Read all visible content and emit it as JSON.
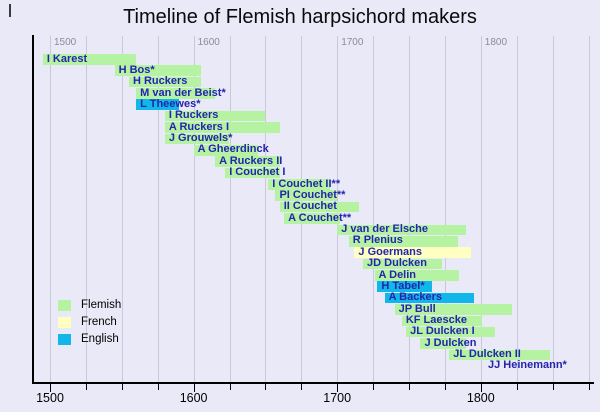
{
  "title": "Timeline of Flemish harpsichord makers",
  "colors": {
    "background": "#e9e9f7",
    "gridline": "#c9c9da",
    "axis": "#000000",
    "bar_label": "#2424ad",
    "top_tick_label": "#8b8b9b",
    "flemish": "#b5f3a3",
    "french": "#ffffc2",
    "english": "#12b7e9"
  },
  "legend": [
    {
      "label": "Flemish",
      "group": "flemish"
    },
    {
      "label": "French",
      "group": "french"
    },
    {
      "label": "English",
      "group": "english"
    }
  ],
  "chart_data": {
    "type": "bar",
    "subtype": "gantt-timeline",
    "title": "Timeline of Flemish harpsichord makers",
    "xlabel": "Year",
    "ylabel": "",
    "xlim": [
      1488,
      1880
    ],
    "grid": true,
    "legend_position": "bottom-left",
    "axis": {
      "major_ticks": [
        1500,
        1600,
        1700,
        1800
      ],
      "minor_step": 25,
      "min": 1500,
      "max": 1875
    },
    "series": [
      {
        "name": "I Karest",
        "start": 1495,
        "end": 1560,
        "group": "flemish"
      },
      {
        "name": "H Bos*",
        "start": 1545,
        "end": 1605,
        "group": "flemish"
      },
      {
        "name": "H Ruckers",
        "start": 1555,
        "end": 1605,
        "group": "flemish"
      },
      {
        "name": "M van der Beist*",
        "start": 1560,
        "end": 1615,
        "group": "flemish"
      },
      {
        "name": "L Theewes*",
        "start": 1560,
        "end": 1590,
        "group": "english"
      },
      {
        "name": "I Ruckers",
        "start": 1580,
        "end": 1650,
        "group": "flemish"
      },
      {
        "name": "A Ruckers I",
        "start": 1580,
        "end": 1660,
        "group": "flemish"
      },
      {
        "name": "J Grouwels*",
        "start": 1580,
        "end": 1625,
        "group": "flemish"
      },
      {
        "name": "A Gheerdinck",
        "start": 1600,
        "end": 1645,
        "group": "flemish"
      },
      {
        "name": "A Ruckers II",
        "start": 1615,
        "end": 1660,
        "group": "flemish"
      },
      {
        "name": "I Couchet I",
        "start": 1622,
        "end": 1660,
        "group": "flemish"
      },
      {
        "name": "I Couchet II**",
        "start": 1652,
        "end": 1695,
        "group": "flemish"
      },
      {
        "name": "PI Couchet**",
        "start": 1657,
        "end": 1700,
        "group": "flemish"
      },
      {
        "name": "II Couchet",
        "start": 1660,
        "end": 1715,
        "group": "flemish"
      },
      {
        "name": "A Couchet**",
        "start": 1663,
        "end": 1702,
        "group": "flemish"
      },
      {
        "name": "J van der Elsche",
        "start": 1700,
        "end": 1790,
        "group": "flemish"
      },
      {
        "name": "R Plenius",
        "start": 1708,
        "end": 1784,
        "group": "flemish"
      },
      {
        "name": "J Goermans",
        "start": 1712,
        "end": 1793,
        "group": "french"
      },
      {
        "name": "JD Dulcken",
        "start": 1718,
        "end": 1773,
        "group": "flemish"
      },
      {
        "name": "A Delin",
        "start": 1726,
        "end": 1785,
        "group": "flemish"
      },
      {
        "name": "H Tabel*",
        "start": 1728,
        "end": 1766,
        "group": "english"
      },
      {
        "name": "A Backers",
        "start": 1733,
        "end": 1795,
        "group": "english"
      },
      {
        "name": "JP Bull",
        "start": 1740,
        "end": 1822,
        "group": "flemish"
      },
      {
        "name": "KF Laescke",
        "start": 1745,
        "end": 1801,
        "group": "flemish"
      },
      {
        "name": "JL Dulcken I",
        "start": 1748,
        "end": 1810,
        "group": "flemish"
      },
      {
        "name": "J Dulcken",
        "start": 1758,
        "end": 1790,
        "group": "flemish"
      },
      {
        "name": "JL Dulcken II",
        "start": 1778,
        "end": 1848,
        "group": "flemish"
      },
      {
        "name": "JJ Heinemann*",
        "start": null,
        "end": null,
        "label_year": 1805,
        "group": "flemish"
      }
    ]
  }
}
